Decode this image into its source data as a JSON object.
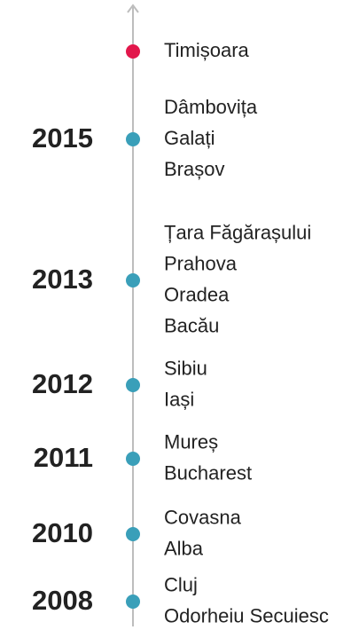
{
  "timeline": {
    "groups": [
      {
        "places": [
          "Timișoara"
        ]
      },
      {
        "year": "2015",
        "places": [
          "Dâmbovița",
          "Galați",
          "Brașov"
        ]
      },
      {
        "year": "2013",
        "places": [
          "Țara Făgărașului",
          "Prahova",
          "Oradea",
          "Bacău"
        ]
      },
      {
        "year": "2012",
        "places": [
          "Sibiu",
          "Iași"
        ]
      },
      {
        "year": "2011",
        "places": [
          "Mureș",
          "Bucharest"
        ]
      },
      {
        "year": "2010",
        "places": [
          "Covasna",
          "Alba"
        ]
      },
      {
        "year": "2008",
        "places": [
          "Cluj",
          "Odorheiu Secuiesc"
        ]
      }
    ]
  }
}
